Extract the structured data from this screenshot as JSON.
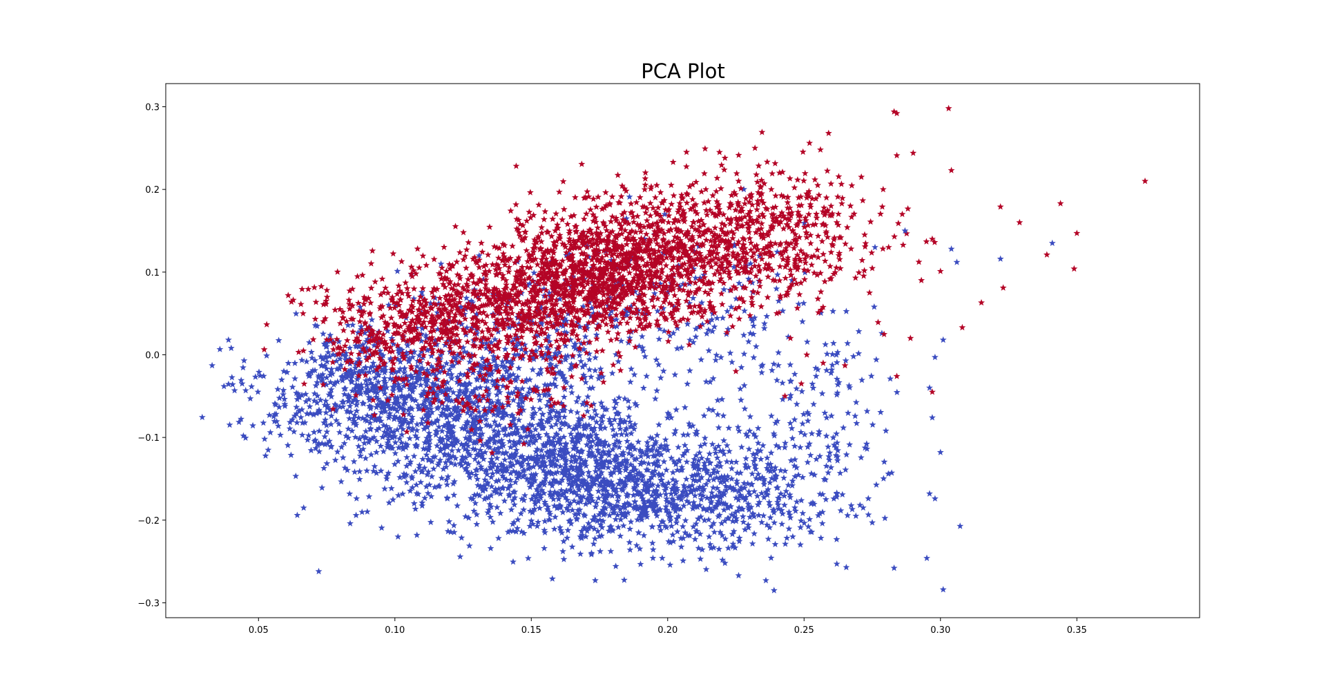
{
  "chart_data": {
    "type": "scatter",
    "title": "PCA Plot",
    "xlabel": "",
    "ylabel": "",
    "xlim": [
      0.016,
      0.395
    ],
    "ylim": [
      -0.318,
      0.328
    ],
    "xticks": [
      0.05,
      0.1,
      0.15,
      0.2,
      0.25,
      0.3,
      0.35
    ],
    "xtick_labels": [
      "0.05",
      "0.10",
      "0.15",
      "0.20",
      "0.25",
      "0.30",
      "0.35"
    ],
    "yticks": [
      -0.3,
      -0.2,
      -0.1,
      0.0,
      0.1,
      0.2,
      0.3
    ],
    "ytick_labels": [
      "−0.3",
      "−0.2",
      "−0.1",
      "0.0",
      "0.1",
      "0.2",
      "0.3"
    ],
    "grid": false,
    "marker": "star",
    "series": [
      {
        "color": "#b40426",
        "points": [
          [
            0.375,
            0.21
          ],
          [
            0.303,
            0.298
          ],
          [
            0.283,
            0.294
          ],
          [
            0.284,
            0.292
          ],
          [
            0.259,
            0.268
          ],
          [
            0.252,
            0.256
          ],
          [
            0.256,
            0.248
          ],
          [
            0.304,
            0.223
          ],
          [
            0.35,
            0.147
          ],
          [
            0.349,
            0.104
          ],
          [
            0.344,
            0.183
          ],
          [
            0.339,
            0.121
          ],
          [
            0.329,
            0.16
          ],
          [
            0.323,
            0.081
          ],
          [
            0.322,
            0.179
          ],
          [
            0.315,
            0.063
          ],
          [
            0.308,
            0.033
          ],
          [
            0.3,
            0.101
          ],
          [
            0.29,
            0.244
          ],
          [
            0.284,
            0.241
          ],
          [
            0.297,
            0.14
          ],
          [
            0.271,
            0.215
          ],
          [
            0.279,
            0.2
          ],
          [
            0.286,
            0.17
          ],
          [
            0.293,
            0.09
          ],
          [
            0.267,
            0.18
          ],
          [
            0.281,
            0.13
          ],
          [
            0.274,
            0.075
          ],
          [
            0.289,
            0.02
          ],
          [
            0.297,
            -0.045
          ],
          [
            0.284,
            -0.026
          ],
          [
            0.262,
            0.16
          ],
          [
            0.255,
            0.205
          ],
          [
            0.248,
            0.19
          ],
          [
            0.243,
            0.165
          ],
          [
            0.238,
            0.2
          ],
          [
            0.247,
            0.14
          ],
          [
            0.251,
            0.12
          ],
          [
            0.236,
            0.13
          ],
          [
            0.226,
            0.18
          ],
          [
            0.219,
            0.245
          ],
          [
            0.221,
            0.238
          ],
          [
            0.226,
            0.21
          ],
          [
            0.214,
            0.2
          ],
          [
            0.207,
            0.195
          ],
          [
            0.202,
            0.233
          ],
          [
            0.196,
            0.205
          ],
          [
            0.232,
            0.25
          ],
          [
            0.241,
            0.22
          ],
          [
            0.228,
            0.1
          ],
          [
            0.233,
            0.075
          ],
          [
            0.24,
            0.05
          ],
          [
            0.245,
            0.02
          ],
          [
            0.251,
            0.0
          ],
          [
            0.257,
            -0.01
          ],
          [
            0.265,
            -0.013
          ],
          [
            0.249,
            -0.035
          ],
          [
            0.243,
            -0.05
          ],
          [
            0.225,
            -0.02
          ]
        ],
        "clusters": [
          {
            "cx": 0.175,
            "cy": 0.1,
            "sx": 0.02,
            "sy": 0.035,
            "n": 900
          },
          {
            "cx": 0.21,
            "cy": 0.13,
            "sx": 0.022,
            "sy": 0.04,
            "n": 650
          },
          {
            "cx": 0.14,
            "cy": 0.06,
            "sx": 0.02,
            "sy": 0.035,
            "n": 550
          },
          {
            "cx": 0.1,
            "cy": 0.03,
            "sx": 0.018,
            "sy": 0.03,
            "n": 320
          },
          {
            "cx": 0.245,
            "cy": 0.15,
            "sx": 0.018,
            "sy": 0.04,
            "n": 260
          },
          {
            "cx": 0.13,
            "cy": -0.03,
            "sx": 0.025,
            "sy": 0.035,
            "n": 150
          }
        ]
      },
      {
        "color": "#3b4cc0",
        "points": [
          [
            0.033,
            -0.013
          ],
          [
            0.039,
            0.018
          ],
          [
            0.04,
            0.008
          ],
          [
            0.044,
            -0.035
          ],
          [
            0.047,
            -0.053
          ],
          [
            0.301,
            -0.284
          ],
          [
            0.283,
            -0.258
          ],
          [
            0.295,
            -0.246
          ],
          [
            0.239,
            -0.285
          ],
          [
            0.236,
            -0.273
          ],
          [
            0.296,
            -0.168
          ],
          [
            0.298,
            -0.174
          ],
          [
            0.3,
            -0.118
          ],
          [
            0.297,
            -0.076
          ],
          [
            0.296,
            -0.04
          ],
          [
            0.298,
            -0.003
          ],
          [
            0.301,
            0.018
          ],
          [
            0.304,
            0.128
          ],
          [
            0.341,
            0.135
          ],
          [
            0.322,
            0.116
          ],
          [
            0.306,
            0.112
          ],
          [
            0.28,
            -0.092
          ],
          [
            0.275,
            -0.203
          ],
          [
            0.269,
            -0.195
          ],
          [
            0.262,
            -0.253
          ],
          [
            0.258,
            -0.175
          ],
          [
            0.226,
            -0.267
          ],
          [
            0.221,
            -0.252
          ],
          [
            0.212,
            -0.247
          ],
          [
            0.198,
            -0.246
          ],
          [
            0.186,
            -0.227
          ],
          [
            0.17,
            -0.22
          ],
          [
            0.155,
            -0.215
          ],
          [
            0.138,
            -0.222
          ],
          [
            0.13,
            -0.205
          ],
          [
            0.097,
            -0.15
          ],
          [
            0.068,
            -0.103
          ],
          [
            0.063,
            -0.093
          ],
          [
            0.054,
            -0.073
          ],
          [
            0.186,
            0.191
          ],
          [
            0.287,
            0.15
          ],
          [
            0.276,
            0.13
          ]
        ],
        "clusters": [
          {
            "cx": 0.13,
            "cy": -0.08,
            "sx": 0.03,
            "sy": 0.05,
            "n": 1100
          },
          {
            "cx": 0.17,
            "cy": -0.15,
            "sx": 0.025,
            "sy": 0.04,
            "n": 800
          },
          {
            "cx": 0.09,
            "cy": -0.04,
            "sx": 0.02,
            "sy": 0.035,
            "n": 500
          },
          {
            "cx": 0.21,
            "cy": -0.17,
            "sx": 0.022,
            "sy": 0.035,
            "n": 420
          },
          {
            "cx": 0.24,
            "cy": -0.14,
            "sx": 0.018,
            "sy": 0.05,
            "n": 160
          },
          {
            "cx": 0.19,
            "cy": 0.05,
            "sx": 0.03,
            "sy": 0.05,
            "n": 220
          },
          {
            "cx": 0.15,
            "cy": 0.02,
            "sx": 0.025,
            "sy": 0.04,
            "n": 180
          },
          {
            "cx": 0.26,
            "cy": -0.05,
            "sx": 0.015,
            "sy": 0.06,
            "n": 90
          }
        ]
      }
    ]
  }
}
